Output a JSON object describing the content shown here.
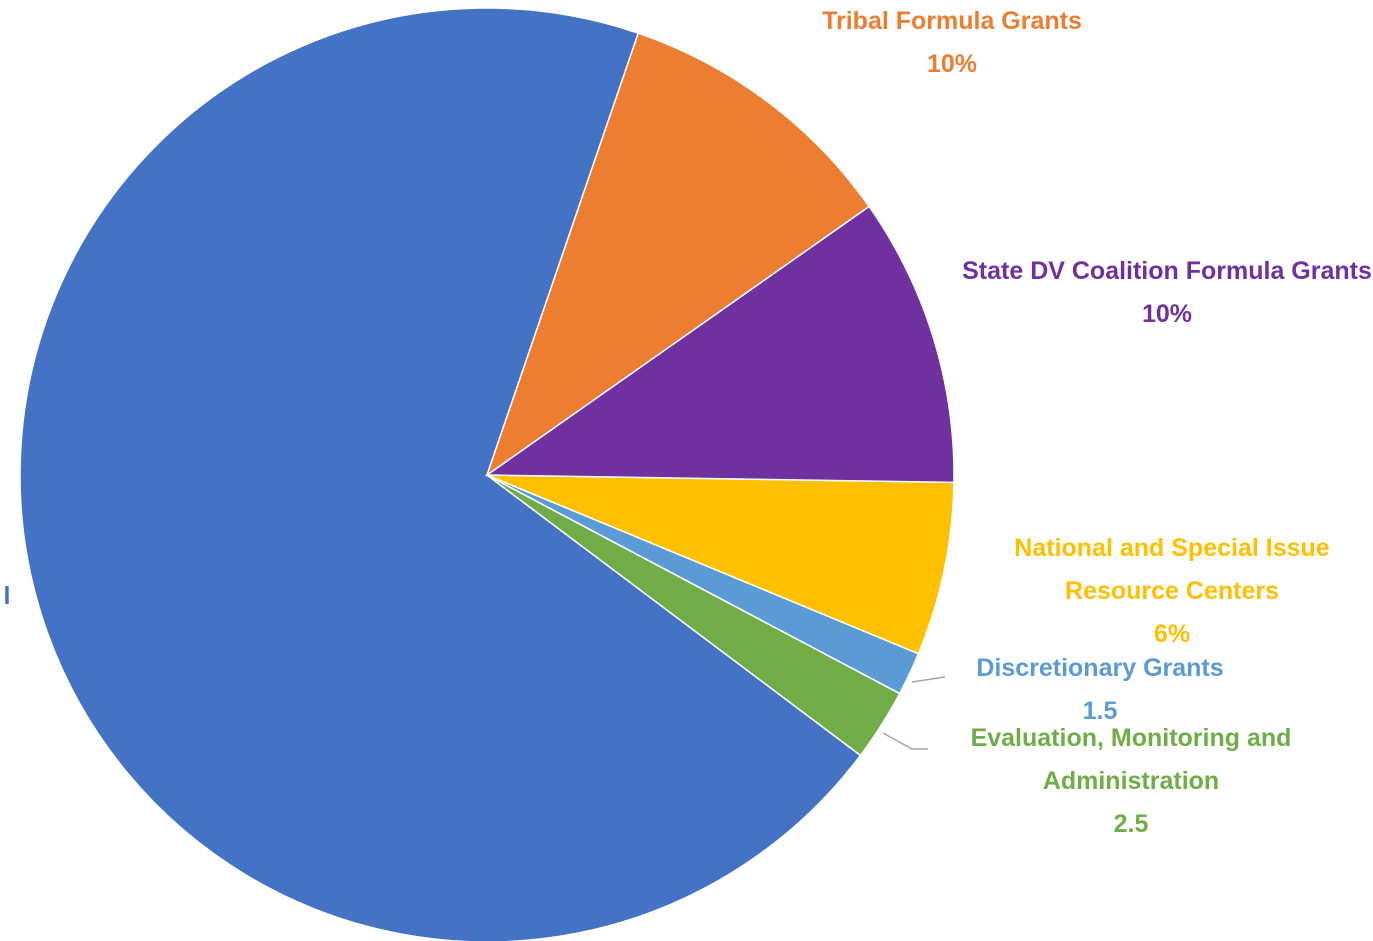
{
  "chart_data": {
    "type": "pie",
    "categories": [
      "Tribal Formula Grants",
      "State DV Coalition Formula Grants",
      "National and Special Issue Resource Centers",
      "Discretionary Grants",
      "Evaluation, Monitoring and Administration",
      "l"
    ],
    "values": [
      10,
      10,
      6,
      1.5,
      2.5,
      70
    ],
    "value_labels": [
      "10%",
      "10%",
      "6%",
      "1.5",
      "2.5",
      null
    ],
    "colors": [
      "#ed7d31",
      "#7030a0",
      "#ffc000",
      "#5b9bd5",
      "#70ad47",
      "#4472c4"
    ]
  }
}
